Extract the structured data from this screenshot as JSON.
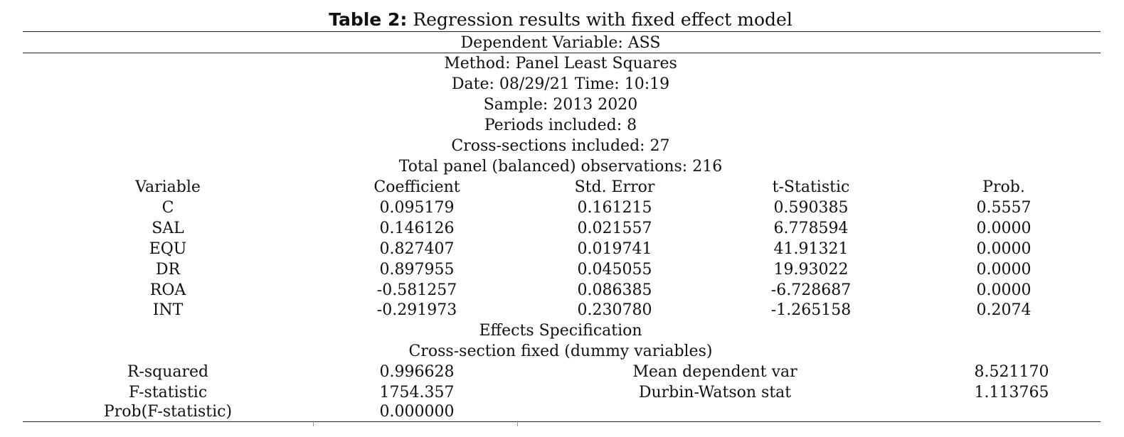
{
  "caption": {
    "label": "Table 2:",
    "text": "Regression results with fixed effect model"
  },
  "dependent_variable": "Dependent Variable: ASS",
  "info": [
    "Method: Panel Least Squares",
    "Date: 08/29/21 Time: 10:19",
    "Sample: 2013 2020",
    "Periods included: 8",
    "Cross-sections included: 27",
    "Total panel (balanced) observations: 216"
  ],
  "columns": [
    "Variable",
    "Coefficient",
    "Std. Error",
    "t-Statistic",
    "Prob."
  ],
  "rows": [
    [
      "C",
      "0.095179",
      "0.161215",
      "0.590385",
      "0.5557"
    ],
    [
      "SAL",
      "0.146126",
      "0.021557",
      "6.778594",
      "0.0000"
    ],
    [
      "EQU",
      "0.827407",
      "0.019741",
      "41.91321",
      "0.0000"
    ],
    [
      "DR",
      "0.897955",
      "0.045055",
      "19.93022",
      "0.0000"
    ],
    [
      "ROA",
      "-0.581257",
      "0.086385",
      "-6.728687",
      "0.0000"
    ],
    [
      "INT",
      "-0.291973",
      "0.230780",
      "-1.265158",
      "0.2074"
    ]
  ],
  "effects": {
    "heading": "Effects Specification",
    "detail": "Cross-section fixed (dummy variables)"
  },
  "stats": [
    [
      "R-squared",
      "0.996628",
      "Mean dependent var",
      "8.521170"
    ],
    [
      "F-statistic",
      "1754.357",
      "Durbin-Watson stat",
      "1.113765"
    ],
    [
      "Prob(F-statistic)",
      "0.000000",
      "",
      ""
    ]
  ]
}
